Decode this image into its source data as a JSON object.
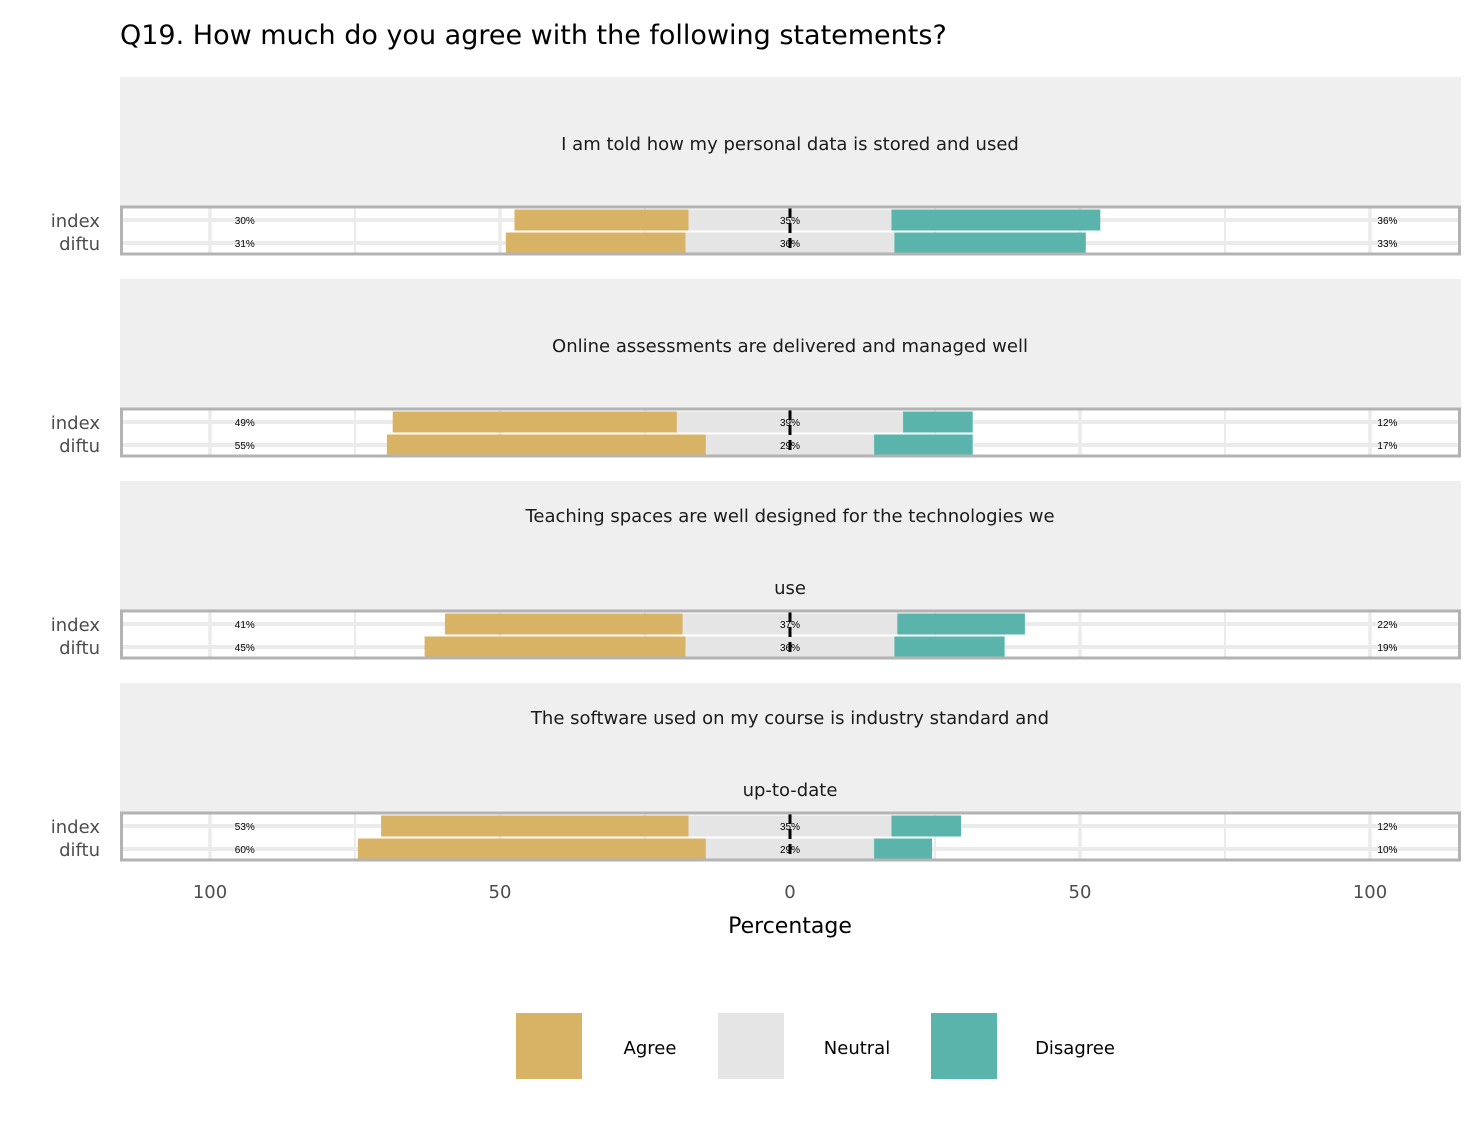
{
  "chart_data": {
    "type": "bar",
    "subtype": "diverging-stacked-likert",
    "title": "Q19. How much do you agree with the following statements?",
    "xlabel": "Percentage",
    "xlim": [
      -100,
      100
    ],
    "x_ticks": [
      -100,
      -50,
      0,
      50,
      100
    ],
    "x_tick_labels": [
      "100",
      "50",
      "0",
      "50",
      "100"
    ],
    "legend": {
      "position": "bottom",
      "entries": [
        {
          "key": "agree",
          "label": "Agree"
        },
        {
          "key": "neutral",
          "label": "Neutral"
        },
        {
          "key": "disagree",
          "label": "Disagree"
        }
      ]
    },
    "colors": {
      "agree": "#d8b365",
      "neutral": "#e5e5e5",
      "disagree": "#5ab4ac",
      "panel": "#efefef",
      "grid": "#ebebeb",
      "border": "#b3b3b3"
    },
    "panels": [
      {
        "strip_lines": [
          "I am told how my personal data is stored and used"
        ],
        "rows": [
          {
            "label": "index",
            "agree": 30,
            "neutral": 35,
            "disagree": 36,
            "agree_label": "30%",
            "neutral_label": "35%",
            "disagree_label": "36%"
          },
          {
            "label": "diftu",
            "agree": 31,
            "neutral": 36,
            "disagree": 33,
            "agree_label": "31%",
            "neutral_label": "36%",
            "disagree_label": "33%"
          }
        ]
      },
      {
        "strip_lines": [
          "Online assessments are delivered and managed well"
        ],
        "rows": [
          {
            "label": "index",
            "agree": 49,
            "neutral": 39,
            "disagree": 12,
            "agree_label": "49%",
            "neutral_label": "39%",
            "disagree_label": "12%"
          },
          {
            "label": "diftu",
            "agree": 55,
            "neutral": 29,
            "disagree": 17,
            "agree_label": "55%",
            "neutral_label": "29%",
            "disagree_label": "17%"
          }
        ]
      },
      {
        "strip_lines": [
          "Teaching spaces are well designed for the technologies we",
          "use"
        ],
        "rows": [
          {
            "label": "index",
            "agree": 41,
            "neutral": 37,
            "disagree": 22,
            "agree_label": "41%",
            "neutral_label": "37%",
            "disagree_label": "22%"
          },
          {
            "label": "diftu",
            "agree": 45,
            "neutral": 36,
            "disagree": 19,
            "agree_label": "45%",
            "neutral_label": "36%",
            "disagree_label": "19%"
          }
        ]
      },
      {
        "strip_lines": [
          "The software used on my course is industry standard and",
          "up-to-date"
        ],
        "rows": [
          {
            "label": "index",
            "agree": 53,
            "neutral": 35,
            "disagree": 12,
            "agree_label": "53%",
            "neutral_label": "35%",
            "disagree_label": "12%"
          },
          {
            "label": "diftu",
            "agree": 60,
            "neutral": 29,
            "disagree": 10,
            "agree_label": "60%",
            "neutral_label": "29%",
            "disagree_label": "10%"
          }
        ]
      }
    ]
  }
}
